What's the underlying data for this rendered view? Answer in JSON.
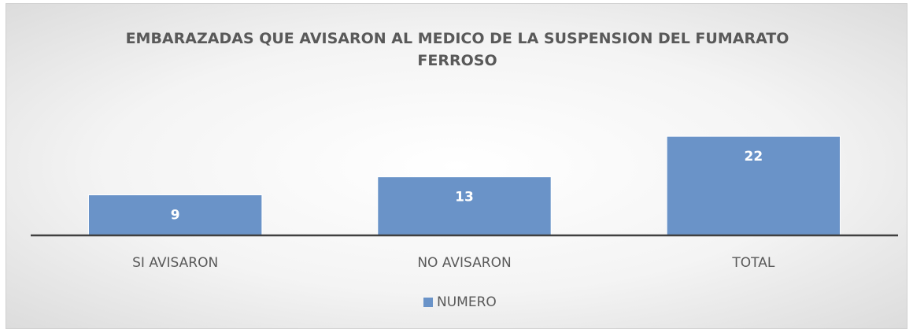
{
  "chart_data": {
    "type": "bar",
    "title": "EMBARAZADAS QUE AVISARON AL MEDICO DE LA SUSPENSION DEL FUMARATO FERROSO",
    "categories": [
      "SI AVISARON",
      "NO AVISARON",
      "TOTAL"
    ],
    "series": [
      {
        "name": "NUMERO",
        "color": "#6a93c8",
        "values": [
          9,
          13,
          22
        ]
      }
    ],
    "ylim": [
      0,
      25
    ],
    "legend": "bottom"
  }
}
